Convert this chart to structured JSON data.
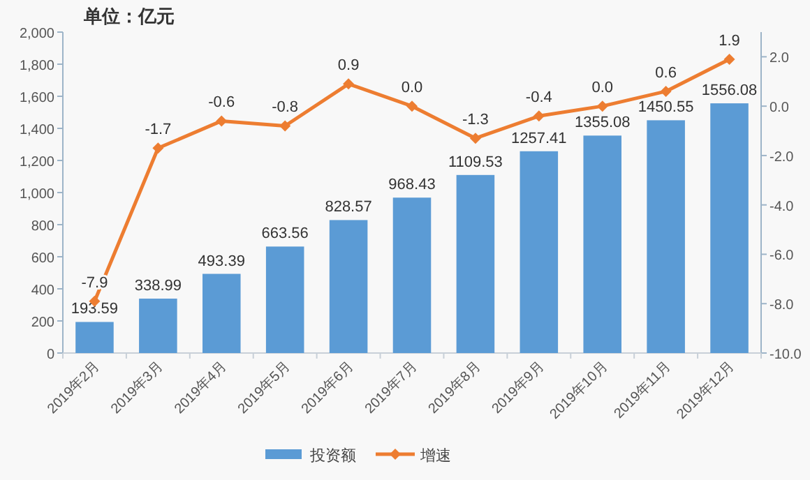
{
  "chart_data": {
    "type": "bar",
    "title": "单位：亿元",
    "categories": [
      "2019年2月",
      "2019年3月",
      "2019年4月",
      "2019年5月",
      "2019年6月",
      "2019年7月",
      "2019年8月",
      "2019年9月",
      "2019年10月",
      "2019年11月",
      "2019年12月"
    ],
    "series": [
      {
        "name": "投资额",
        "color": "#5b9bd5",
        "values": [
          193.59,
          338.99,
          493.39,
          663.56,
          828.57,
          968.43,
          1109.53,
          1257.41,
          1355.08,
          1450.55,
          1556.08
        ],
        "value_labels": [
          "193.59",
          "338.99",
          "493.39",
          "663.56",
          "828.57",
          "968.43",
          "1109.53",
          "1257.41",
          "1355.08",
          "1450.55",
          "1556.08"
        ]
      },
      {
        "name": "增速",
        "type": "line",
        "axis": "y2",
        "color": "#ed7d31",
        "marker": "diamond",
        "line_style": "solid",
        "values": [
          -7.9,
          -1.7,
          -0.6,
          -0.8,
          0.9,
          0.0,
          -1.3,
          -0.4,
          0.0,
          0.6,
          1.9
        ],
        "value_labels": [
          "-7.9",
          "-1.7",
          "-0.6",
          "-0.8",
          "0.9",
          "0.0",
          "-1.3",
          "-0.4",
          "0.0",
          "0.6",
          "1.9"
        ]
      }
    ],
    "ylim": [
      0,
      2000
    ],
    "yticks": [
      0,
      200,
      400,
      600,
      800,
      {
        "value": 1000,
        "label": "1,000"
      },
      {
        "value": 1200,
        "label": "1,200"
      },
      {
        "value": 1400,
        "label": "1,400"
      },
      {
        "value": 1600,
        "label": "1,600"
      },
      {
        "value": 1800,
        "label": "1,800"
      },
      {
        "value": 2000,
        "label": "2,000"
      }
    ],
    "y2lim": [
      -10,
      3
    ],
    "y2ticks": [
      {
        "value": -10,
        "label": "-10.0"
      },
      {
        "value": -8,
        "label": "-8.0"
      },
      {
        "value": -6,
        "label": "-6.0"
      },
      {
        "value": -4,
        "label": "-4.0"
      },
      {
        "value": -2,
        "label": "-2.0"
      },
      {
        "value": 0,
        "label": "0.0"
      },
      {
        "value": 2,
        "label": "2.0"
      }
    ],
    "grid": false,
    "legend": "bottom"
  }
}
